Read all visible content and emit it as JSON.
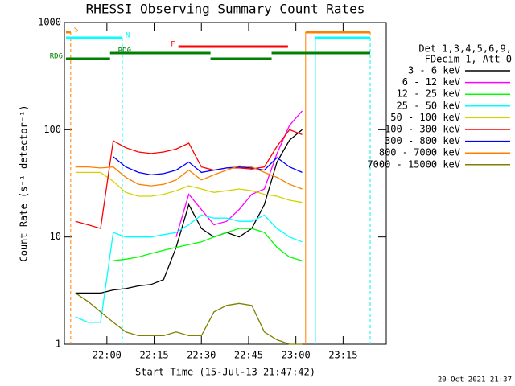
{
  "chart_data": {
    "type": "line",
    "title": "RHESSI Observing Summary Count Rates",
    "xlabel": "Start Time (15-Jul-13 21:47:42)",
    "ylabel": "Count Rate (s⁻¹ detector⁻¹)",
    "footer": "20-Oct-2021 21:37",
    "legend_header": [
      "Det 1,3,4,5,6,9,",
      "FDecim 1, Att 0"
    ],
    "log_y": true,
    "xlim": [
      1306.5,
      1408.7
    ],
    "ylim": [
      1,
      1000
    ],
    "xticks": [
      {
        "value": 1320,
        "label": "22:00"
      },
      {
        "value": 1335,
        "label": "22:15"
      },
      {
        "value": 1350,
        "label": "22:30"
      },
      {
        "value": 1365,
        "label": "22:45"
      },
      {
        "value": 1380,
        "label": "23:00"
      },
      {
        "value": 1395,
        "label": "23:15"
      }
    ],
    "yticks": [
      1,
      10,
      100,
      1000
    ],
    "x": [
      1310,
      1314,
      1318,
      1322,
      1326,
      1330,
      1334,
      1338,
      1342,
      1346,
      1350,
      1354,
      1358,
      1362,
      1366,
      1370,
      1374,
      1378,
      1382
    ],
    "series": [
      {
        "name": "3 - 6 keV",
        "color": "#000000",
        "values": [
          3,
          3,
          3,
          3.2,
          3.3,
          3.5,
          3.6,
          4,
          8,
          20,
          12,
          10,
          11,
          10,
          12,
          20,
          50,
          80,
          100
        ]
      },
      {
        "name": "6 - 12 keV",
        "color": "#ff00ff",
        "values": [
          null,
          null,
          null,
          null,
          null,
          null,
          null,
          null,
          10,
          25,
          18,
          13,
          14,
          18,
          25,
          28,
          60,
          110,
          150
        ]
      },
      {
        "name": "12 - 25 keV",
        "color": "#00ff00",
        "values": [
          null,
          null,
          null,
          6,
          6.2,
          6.5,
          7,
          7.5,
          8,
          8.5,
          9,
          10,
          11,
          12,
          12,
          11,
          8,
          6.5,
          6
        ]
      },
      {
        "name": "25 - 50 keV",
        "color": "#00ffff",
        "values": [
          1.8,
          1.6,
          1.6,
          11,
          10,
          10,
          10,
          10.5,
          11,
          13,
          16,
          15,
          15,
          14,
          14,
          16,
          12,
          10,
          9
        ]
      },
      {
        "name": "50 - 100 keV",
        "color": "#d4d400",
        "values": [
          40,
          40,
          40,
          33,
          26,
          24,
          24,
          25,
          27,
          30,
          28,
          26,
          27,
          28,
          27,
          25,
          24,
          22,
          21
        ]
      },
      {
        "name": "100 - 300 keV",
        "color": "#ff0000",
        "values": [
          14,
          13,
          12,
          79,
          68,
          62,
          60,
          62,
          66,
          75,
          45,
          42,
          44,
          44,
          43,
          45,
          70,
          100,
          90
        ]
      },
      {
        "name": "300 - 800 keV",
        "color": "#0000ff",
        "values": [
          null,
          null,
          null,
          56,
          45,
          40,
          38,
          39,
          42,
          50,
          40,
          42,
          44,
          45,
          44,
          42,
          55,
          45,
          40
        ]
      },
      {
        "name": "800 - 7000 keV",
        "color": "#ff8000",
        "values": [
          45,
          45,
          44,
          45,
          36,
          31,
          30,
          31,
          34,
          42,
          34,
          38,
          42,
          46,
          45,
          40,
          36,
          31,
          28
        ]
      },
      {
        "name": "7000 - 15000 keV",
        "color": "#808000",
        "values": [
          3,
          2.5,
          2,
          1.6,
          1.3,
          1.2,
          1.2,
          1.2,
          1.3,
          1.2,
          1.2,
          2,
          2.3,
          2.4,
          2.3,
          1.3,
          1.1,
          1,
          1
        ]
      }
    ],
    "flags": [
      {
        "label": "S",
        "color": "#ff8000",
        "segments": [
          [
            1307,
            1308.5
          ],
          [
            1383.1,
            1403.6
          ]
        ]
      },
      {
        "label": "N",
        "color": "#00ffff",
        "segments": [
          [
            1307,
            1324.9
          ],
          [
            1386.2,
            1403.6
          ]
        ]
      },
      {
        "label": "F",
        "color": "#ff0000",
        "segments": [
          [
            1342.7,
            1377.5
          ]
        ]
      },
      {
        "label": "RD0",
        "color": "#008000",
        "segments": [
          [
            1321,
            1352.9
          ],
          [
            1372.3,
            1403.6
          ]
        ]
      },
      {
        "label": "RD6",
        "color": "#008000",
        "segments": [
          [
            1307,
            1321
          ],
          [
            1352.9,
            1372.3
          ]
        ]
      }
    ]
  }
}
